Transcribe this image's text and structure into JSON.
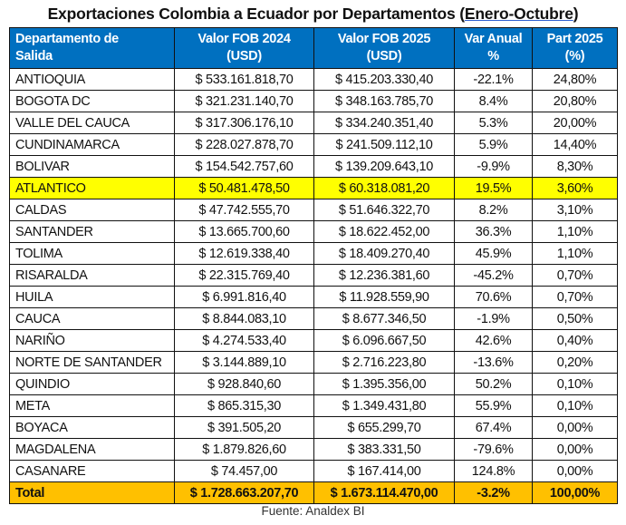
{
  "title": {
    "prefix": "Exportaciones Colombia a Ecuador por Departamentos (",
    "period": "Enero-Octubre",
    "suffix": ")"
  },
  "colors": {
    "header": "#0070C0",
    "highlight": "#FFFF00",
    "total": "#FFC000"
  },
  "table": {
    "headers": [
      [
        "Departamento de",
        "Salida"
      ],
      [
        "Valor FOB 2024",
        "(USD)"
      ],
      [
        "Valor FOB 2025",
        "(USD)"
      ],
      [
        "Var Anual",
        "%"
      ],
      [
        "Part 2025",
        "(%)"
      ]
    ],
    "rows": [
      [
        "ANTIOQUIA",
        "$ 533.161.818,70",
        "$ 415.203.330,40",
        "-22.1%",
        "24,80%"
      ],
      [
        "BOGOTA DC",
        "$ 321.231.140,70",
        "$ 348.163.785,70",
        "8.4%",
        "20,80%"
      ],
      [
        "VALLE DEL CAUCA",
        "$ 317.306.176,10",
        "$ 334.240.351,40",
        "5.3%",
        "20,00%"
      ],
      [
        "CUNDINAMARCA",
        "$ 228.027.878,70",
        "$ 241.509.112,10",
        "5.9%",
        "14,40%"
      ],
      [
        "BOLIVAR",
        "$ 154.542.757,60",
        "$ 139.209.643,10",
        "-9.9%",
        "8,30%"
      ],
      [
        "ATLANTICO",
        "$ 50.481.478,50",
        "$ 60.318.081,20",
        "19.5%",
        "3,60%"
      ],
      [
        "CALDAS",
        "$ 47.742.555,70",
        "$ 51.646.322,70",
        "8.2%",
        "3,10%"
      ],
      [
        "SANTANDER",
        "$ 13.665.700,60",
        "$ 18.622.452,00",
        "36.3%",
        "1,10%"
      ],
      [
        "TOLIMA",
        "$ 12.619.338,40",
        "$ 18.409.270,40",
        "45.9%",
        "1,10%"
      ],
      [
        "RISARALDA",
        "$ 22.315.769,40",
        "$ 12.236.381,60",
        "-45.2%",
        "0,70%"
      ],
      [
        "HUILA",
        "$ 6.991.816,40",
        "$ 11.928.559,90",
        "70.6%",
        "0,70%"
      ],
      [
        "CAUCA",
        "$ 8.844.083,10",
        "$ 8.677.346,50",
        "-1.9%",
        "0,50%"
      ],
      [
        "NARIÑO",
        "$ 4.274.533,40",
        "$ 6.096.667,50",
        "42.6%",
        "0,40%"
      ],
      [
        "NORTE DE SANTANDER",
        "$ 3.144.889,10",
        "$ 2.716.223,80",
        "-13.6%",
        "0,20%"
      ],
      [
        "QUINDIO",
        "$ 928.840,60",
        "$ 1.395.356,00",
        "50.2%",
        "0,10%"
      ],
      [
        "META",
        "$ 865.315,30",
        "$ 1.349.431,80",
        "55.9%",
        "0,10%"
      ],
      [
        "BOYACA",
        "$ 391.505,20",
        "$ 655.299,70",
        "67.4%",
        "0,00%"
      ],
      [
        "MAGDALENA",
        "$ 1.879.826,60",
        "$ 383.331,50",
        "-79.6%",
        "0,00%"
      ],
      [
        "CASANARE",
        "$ 74.457,00",
        "$ 167.414,00",
        "124.8%",
        "0,00%"
      ]
    ],
    "highlighted_row": "ATLANTICO",
    "total": [
      "Total",
      "$ 1.728.663.207,70",
      "$ 1.673.114.470,00",
      "-3.2%",
      "100,00%"
    ]
  },
  "source": "Fuente: Analdex BI"
}
